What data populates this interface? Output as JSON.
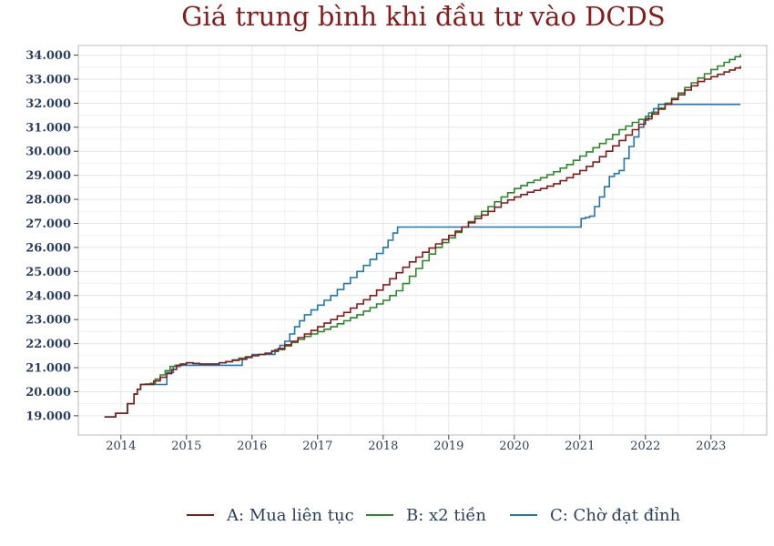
{
  "chart_data": {
    "type": "line",
    "title": "Giá trung bình khi đầu tư vào DCDS",
    "xlabel": "",
    "ylabel": "",
    "x_range": [
      2013.35,
      2023.85
    ],
    "ylim": [
      18200,
      34400
    ],
    "x_ticks": [
      {
        "v": 2014,
        "label": "2014"
      },
      {
        "v": 2015,
        "label": "2015"
      },
      {
        "v": 2016,
        "label": "2016"
      },
      {
        "v": 2017,
        "label": "2017"
      },
      {
        "v": 2018,
        "label": "2018"
      },
      {
        "v": 2019,
        "label": "2019"
      },
      {
        "v": 2020,
        "label": "2020"
      },
      {
        "v": 2021,
        "label": "2021"
      },
      {
        "v": 2022,
        "label": "2022"
      },
      {
        "v": 2023,
        "label": "2023"
      }
    ],
    "y_ticks": [
      {
        "v": 19000,
        "label": "19.000"
      },
      {
        "v": 20000,
        "label": "20.000"
      },
      {
        "v": 21000,
        "label": "21.000"
      },
      {
        "v": 22000,
        "label": "22.000"
      },
      {
        "v": 23000,
        "label": "23.000"
      },
      {
        "v": 24000,
        "label": "24.000"
      },
      {
        "v": 25000,
        "label": "25.000"
      },
      {
        "v": 26000,
        "label": "26.000"
      },
      {
        "v": 27000,
        "label": "27.000"
      },
      {
        "v": 28000,
        "label": "28.000"
      },
      {
        "v": 29000,
        "label": "29.000"
      },
      {
        "v": 30000,
        "label": "30.000"
      },
      {
        "v": 31000,
        "label": "31.000"
      },
      {
        "v": 32000,
        "label": "32.000"
      },
      {
        "v": 33000,
        "label": "33.000"
      },
      {
        "v": 34000,
        "label": "34.000"
      }
    ],
    "grid": true,
    "legend_position": "bottom",
    "step_shape": "monthly steps",
    "series": [
      {
        "name": "A: Mua liên tục",
        "color": "#8b1a1a",
        "points": [
          [
            2013.75,
            18950
          ],
          [
            2013.9,
            18950
          ],
          [
            2013.92,
            19100
          ],
          [
            2014.05,
            19100
          ],
          [
            2014.1,
            19500
          ],
          [
            2014.2,
            19900
          ],
          [
            2014.25,
            20100
          ],
          [
            2014.3,
            20300
          ],
          [
            2014.4,
            20300
          ],
          [
            2014.5,
            20450
          ],
          [
            2014.7,
            20750
          ],
          [
            2014.85,
            21100
          ],
          [
            2015.0,
            21200
          ],
          [
            2015.2,
            21150
          ],
          [
            2015.4,
            21150
          ],
          [
            2015.6,
            21250
          ],
          [
            2015.8,
            21350
          ],
          [
            2016.0,
            21500
          ],
          [
            2016.2,
            21600
          ],
          [
            2016.4,
            21800
          ],
          [
            2016.6,
            22100
          ],
          [
            2016.8,
            22400
          ],
          [
            2017.0,
            22700
          ],
          [
            2017.2,
            23000
          ],
          [
            2017.4,
            23300
          ],
          [
            2017.6,
            23650
          ],
          [
            2017.8,
            24000
          ],
          [
            2018.0,
            24450
          ],
          [
            2018.2,
            24950
          ],
          [
            2018.4,
            25400
          ],
          [
            2018.6,
            25800
          ],
          [
            2018.8,
            26150
          ],
          [
            2019.0,
            26500
          ],
          [
            2019.2,
            26850
          ],
          [
            2019.4,
            27200
          ],
          [
            2019.6,
            27500
          ],
          [
            2019.8,
            27850
          ],
          [
            2020.0,
            28100
          ],
          [
            2020.2,
            28300
          ],
          [
            2020.4,
            28450
          ],
          [
            2020.6,
            28650
          ],
          [
            2020.8,
            28900
          ],
          [
            2021.0,
            29200
          ],
          [
            2021.2,
            29550
          ],
          [
            2021.4,
            30000
          ],
          [
            2021.6,
            30450
          ],
          [
            2021.8,
            30900
          ],
          [
            2022.0,
            31350
          ],
          [
            2022.2,
            31750
          ],
          [
            2022.4,
            32150
          ],
          [
            2022.6,
            32550
          ],
          [
            2022.8,
            32900
          ],
          [
            2023.0,
            33100
          ],
          [
            2023.2,
            33300
          ],
          [
            2023.45,
            33550
          ]
        ]
      },
      {
        "name": "B: x2 tiền",
        "color": "#2a8a2a",
        "points": [
          [
            2013.75,
            18950
          ],
          [
            2013.9,
            18950
          ],
          [
            2013.92,
            19100
          ],
          [
            2014.05,
            19100
          ],
          [
            2014.1,
            19500
          ],
          [
            2014.2,
            19900
          ],
          [
            2014.25,
            20100
          ],
          [
            2014.3,
            20300
          ],
          [
            2014.45,
            20350
          ],
          [
            2014.6,
            20700
          ],
          [
            2014.75,
            21050
          ],
          [
            2014.9,
            21150
          ],
          [
            2015.0,
            21200
          ],
          [
            2015.2,
            21150
          ],
          [
            2015.4,
            21150
          ],
          [
            2015.6,
            21250
          ],
          [
            2015.8,
            21400
          ],
          [
            2016.0,
            21500
          ],
          [
            2016.2,
            21600
          ],
          [
            2016.4,
            21750
          ],
          [
            2016.6,
            22050
          ],
          [
            2016.8,
            22300
          ],
          [
            2017.0,
            22500
          ],
          [
            2017.2,
            22700
          ],
          [
            2017.4,
            22950
          ],
          [
            2017.6,
            23200
          ],
          [
            2017.8,
            23500
          ],
          [
            2018.0,
            23800
          ],
          [
            2018.2,
            24200
          ],
          [
            2018.4,
            24800
          ],
          [
            2018.6,
            25450
          ],
          [
            2018.8,
            26000
          ],
          [
            2019.0,
            26400
          ],
          [
            2019.2,
            26850
          ],
          [
            2019.4,
            27300
          ],
          [
            2019.6,
            27700
          ],
          [
            2019.8,
            28100
          ],
          [
            2020.0,
            28450
          ],
          [
            2020.2,
            28700
          ],
          [
            2020.4,
            28900
          ],
          [
            2020.6,
            29150
          ],
          [
            2020.8,
            29450
          ],
          [
            2021.0,
            29800
          ],
          [
            2021.2,
            30150
          ],
          [
            2021.4,
            30500
          ],
          [
            2021.6,
            30900
          ],
          [
            2021.8,
            31200
          ],
          [
            2022.0,
            31450
          ],
          [
            2022.2,
            31800
          ],
          [
            2022.4,
            32200
          ],
          [
            2022.6,
            32650
          ],
          [
            2022.8,
            33050
          ],
          [
            2023.0,
            33400
          ],
          [
            2023.2,
            33700
          ],
          [
            2023.45,
            34050
          ]
        ]
      },
      {
        "name": "C: Chờ đạt đỉnh",
        "color": "#1f77b4",
        "points": [
          [
            2013.75,
            18950
          ],
          [
            2013.9,
            18950
          ],
          [
            2013.92,
            19100
          ],
          [
            2014.05,
            19100
          ],
          [
            2014.1,
            19500
          ],
          [
            2014.2,
            19900
          ],
          [
            2014.25,
            20100
          ],
          [
            2014.3,
            20300
          ],
          [
            2014.65,
            20300
          ],
          [
            2014.7,
            20800
          ],
          [
            2014.8,
            21050
          ],
          [
            2014.9,
            21100
          ],
          [
            2015.4,
            21100
          ],
          [
            2015.8,
            21100
          ],
          [
            2015.85,
            21350
          ],
          [
            2016.0,
            21550
          ],
          [
            2016.3,
            21550
          ],
          [
            2016.35,
            21750
          ],
          [
            2016.5,
            22100
          ],
          [
            2016.65,
            22700
          ],
          [
            2016.8,
            23200
          ],
          [
            2017.0,
            23600
          ],
          [
            2017.2,
            24000
          ],
          [
            2017.4,
            24500
          ],
          [
            2017.6,
            25000
          ],
          [
            2017.8,
            25500
          ],
          [
            2018.0,
            26000
          ],
          [
            2018.15,
            26600
          ],
          [
            2018.22,
            26850
          ],
          [
            2019.0,
            26850
          ],
          [
            2020.0,
            26850
          ],
          [
            2021.0,
            26850
          ],
          [
            2021.02,
            27200
          ],
          [
            2021.15,
            27300
          ],
          [
            2021.3,
            28100
          ],
          [
            2021.45,
            28950
          ],
          [
            2021.6,
            29200
          ],
          [
            2021.75,
            30200
          ],
          [
            2021.9,
            31000
          ],
          [
            2022.05,
            31600
          ],
          [
            2022.2,
            31950
          ],
          [
            2022.6,
            31950
          ],
          [
            2023.0,
            31950
          ],
          [
            2023.45,
            31950
          ]
        ]
      }
    ]
  }
}
